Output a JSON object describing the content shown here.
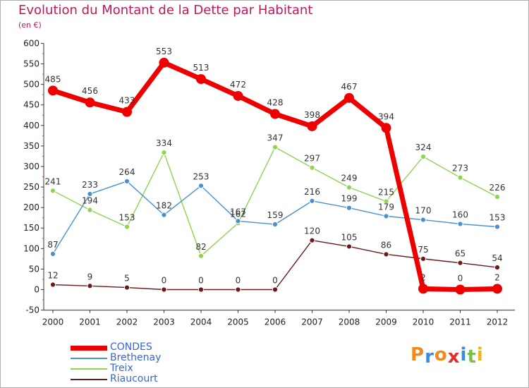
{
  "chart_data": {
    "type": "line",
    "title": "Evolution du Montant de la Dette par Habitant",
    "subtitle": "(en €)",
    "x": [
      "2000",
      "2001",
      "2002",
      "2003",
      "2004",
      "2005",
      "2006",
      "2007",
      "2008",
      "2009",
      "2010",
      "2011",
      "2012"
    ],
    "ylim": [
      -50,
      600
    ],
    "yticks": [
      -50,
      0,
      50,
      100,
      150,
      200,
      250,
      300,
      350,
      400,
      450,
      500,
      550,
      600
    ],
    "ytick_labels": [
      "-50",
      "0",
      "50",
      "100",
      "150",
      "200",
      "250",
      "300",
      "350",
      "400",
      "450",
      "500",
      "550",
      "600"
    ],
    "grid": false,
    "legend_position": "bottom-left",
    "series": [
      {
        "name": "CONDES",
        "color": "#ee0000",
        "values": [
          485,
          456,
          433,
          553,
          513,
          472,
          428,
          398,
          467,
          394,
          2,
          0,
          2
        ]
      },
      {
        "name": "Brethenay",
        "color": "#4a90d0",
        "values": [
          87,
          233,
          264,
          182,
          253,
          167,
          159,
          216,
          199,
          179,
          170,
          160,
          153
        ]
      },
      {
        "name": "Treix",
        "color": "#8fd44f",
        "values": [
          241,
          194,
          153,
          334,
          82,
          162,
          347,
          297,
          249,
          215,
          324,
          273,
          226
        ]
      },
      {
        "name": "Riaucourt",
        "color": "#6b1a1a",
        "values": [
          12,
          9,
          5,
          0,
          0,
          0,
          0,
          120,
          105,
          86,
          75,
          65,
          54
        ]
      }
    ]
  },
  "logo": {
    "letters": [
      "P",
      "r",
      "o",
      "x",
      "i",
      "t",
      "i"
    ],
    "colors": [
      "#f08a1c",
      "#3a8be0",
      "#f08a1c",
      "#e0302a",
      "#3a8be0",
      "#7bc142",
      "#f0b51c"
    ]
  }
}
